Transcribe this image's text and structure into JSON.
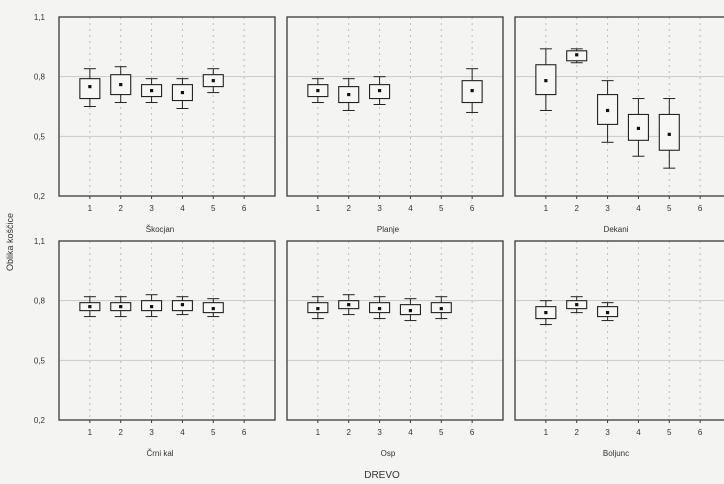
{
  "chart_data": {
    "type": "boxplot",
    "xlabel": "DREVO",
    "ylabel": "Oblika koščice",
    "ylim": [
      0.2,
      1.1
    ],
    "yticks": [
      0.2,
      0.5,
      0.8,
      1.1
    ],
    "ytick_labels": [
      "0,2",
      "0,5",
      "0,8",
      "1,1"
    ],
    "categories": [
      "1",
      "2",
      "3",
      "4",
      "5",
      "6"
    ],
    "grid": true,
    "panels": [
      {
        "name": "Škocjan",
        "boxes": [
          {
            "tree": "1",
            "whisker_low": 0.65,
            "q1": 0.69,
            "mean": 0.75,
            "q3": 0.79,
            "whisker_high": 0.84
          },
          {
            "tree": "2",
            "whisker_low": 0.67,
            "q1": 0.71,
            "mean": 0.76,
            "q3": 0.81,
            "whisker_high": 0.85
          },
          {
            "tree": "3",
            "whisker_low": 0.67,
            "q1": 0.7,
            "mean": 0.73,
            "q3": 0.76,
            "whisker_high": 0.79
          },
          {
            "tree": "4",
            "whisker_low": 0.64,
            "q1": 0.68,
            "mean": 0.72,
            "q3": 0.76,
            "whisker_high": 0.79
          },
          {
            "tree": "5",
            "whisker_low": 0.72,
            "q1": 0.75,
            "mean": 0.78,
            "q3": 0.81,
            "whisker_high": 0.84
          }
        ]
      },
      {
        "name": "Planje",
        "boxes": [
          {
            "tree": "1",
            "whisker_low": 0.67,
            "q1": 0.7,
            "mean": 0.73,
            "q3": 0.76,
            "whisker_high": 0.79
          },
          {
            "tree": "2",
            "whisker_low": 0.63,
            "q1": 0.67,
            "mean": 0.71,
            "q3": 0.75,
            "whisker_high": 0.79
          },
          {
            "tree": "3",
            "whisker_low": 0.66,
            "q1": 0.69,
            "mean": 0.73,
            "q3": 0.76,
            "whisker_high": 0.8
          },
          {
            "tree": "6",
            "whisker_low": 0.62,
            "q1": 0.67,
            "mean": 0.73,
            "q3": 0.78,
            "whisker_high": 0.84
          }
        ]
      },
      {
        "name": "Dekani",
        "boxes": [
          {
            "tree": "1",
            "whisker_low": 0.63,
            "q1": 0.71,
            "mean": 0.78,
            "q3": 0.86,
            "whisker_high": 0.94
          },
          {
            "tree": "2",
            "whisker_low": 0.87,
            "q1": 0.88,
            "mean": 0.91,
            "q3": 0.93,
            "whisker_high": 0.94
          },
          {
            "tree": "3",
            "whisker_low": 0.47,
            "q1": 0.56,
            "mean": 0.63,
            "q3": 0.71,
            "whisker_high": 0.78
          },
          {
            "tree": "4",
            "whisker_low": 0.4,
            "q1": 0.48,
            "mean": 0.54,
            "q3": 0.61,
            "whisker_high": 0.69
          },
          {
            "tree": "5",
            "whisker_low": 0.34,
            "q1": 0.43,
            "mean": 0.51,
            "q3": 0.61,
            "whisker_high": 0.69
          }
        ]
      },
      {
        "name": "Črni kal",
        "boxes": [
          {
            "tree": "1",
            "whisker_low": 0.72,
            "q1": 0.75,
            "mean": 0.77,
            "q3": 0.79,
            "whisker_high": 0.82
          },
          {
            "tree": "2",
            "whisker_low": 0.72,
            "q1": 0.75,
            "mean": 0.77,
            "q3": 0.79,
            "whisker_high": 0.82
          },
          {
            "tree": "3",
            "whisker_low": 0.72,
            "q1": 0.75,
            "mean": 0.77,
            "q3": 0.8,
            "whisker_high": 0.83
          },
          {
            "tree": "4",
            "whisker_low": 0.73,
            "q1": 0.75,
            "mean": 0.78,
            "q3": 0.8,
            "whisker_high": 0.82
          },
          {
            "tree": "5",
            "whisker_low": 0.72,
            "q1": 0.74,
            "mean": 0.76,
            "q3": 0.79,
            "whisker_high": 0.81
          }
        ]
      },
      {
        "name": "Osp",
        "boxes": [
          {
            "tree": "1",
            "whisker_low": 0.71,
            "q1": 0.74,
            "mean": 0.76,
            "q3": 0.79,
            "whisker_high": 0.82
          },
          {
            "tree": "2",
            "whisker_low": 0.73,
            "q1": 0.76,
            "mean": 0.78,
            "q3": 0.8,
            "whisker_high": 0.83
          },
          {
            "tree": "3",
            "whisker_low": 0.71,
            "q1": 0.74,
            "mean": 0.76,
            "q3": 0.79,
            "whisker_high": 0.82
          },
          {
            "tree": "4",
            "whisker_low": 0.7,
            "q1": 0.73,
            "mean": 0.75,
            "q3": 0.78,
            "whisker_high": 0.81
          },
          {
            "tree": "5",
            "whisker_low": 0.71,
            "q1": 0.74,
            "mean": 0.76,
            "q3": 0.79,
            "whisker_high": 0.82
          }
        ]
      },
      {
        "name": "Boljunc",
        "boxes": [
          {
            "tree": "1",
            "whisker_low": 0.68,
            "q1": 0.71,
            "mean": 0.74,
            "q3": 0.77,
            "whisker_high": 0.8
          },
          {
            "tree": "2",
            "whisker_low": 0.74,
            "q1": 0.76,
            "mean": 0.78,
            "q3": 0.8,
            "whisker_high": 0.82
          },
          {
            "tree": "3",
            "whisker_low": 0.7,
            "q1": 0.72,
            "mean": 0.74,
            "q3": 0.77,
            "whisker_high": 0.79
          }
        ]
      }
    ]
  }
}
